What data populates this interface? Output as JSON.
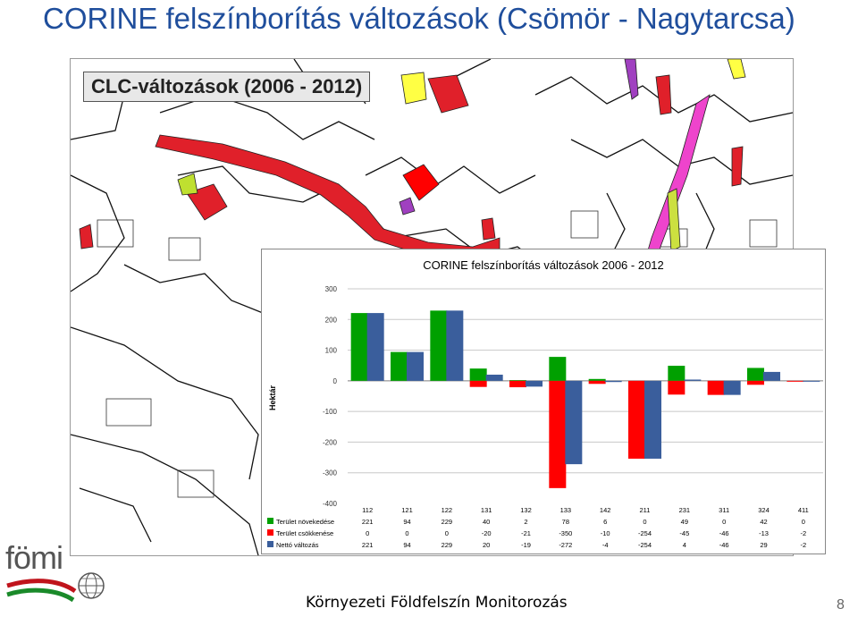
{
  "slide": {
    "title": "CORINE felszínborítás változások (Csömör - Nagytarcsa)",
    "map_label": "CLC-változások (2006 - 2012)",
    "logo_text": "fömi",
    "footer": "Környezeti Földfelszín Monitorozás",
    "page_number": "8"
  },
  "chart_data": {
    "type": "bar",
    "title": "CORINE felszínborítás változások 2006 - 2012",
    "ylabel": "Hektár",
    "xlabel": "",
    "ylim": [
      -400,
      300
    ],
    "yticks": [
      300,
      200,
      100,
      0,
      -100,
      -200,
      -300,
      -400
    ],
    "grid": true,
    "legend": "table-below",
    "categories": [
      "112",
      "121",
      "122",
      "131",
      "132",
      "133",
      "142",
      "211",
      "231",
      "311",
      "324",
      "411"
    ],
    "series": [
      {
        "name": "Terület növekedése",
        "color": "#00a000",
        "values": [
          221,
          94,
          229,
          40,
          2,
          78,
          6,
          0,
          49,
          0,
          42,
          0
        ]
      },
      {
        "name": "Terület csökkenése",
        "color": "#ff0000",
        "values": [
          0,
          0,
          0,
          -20,
          -21,
          -350,
          -10,
          -254,
          -45,
          -46,
          -13,
          -2
        ]
      },
      {
        "name": "Nettó változás",
        "color": "#3a5e9c",
        "values": [
          221,
          94,
          229,
          20,
          -19,
          -272,
          -4,
          -254,
          4,
          -46,
          29,
          -2
        ]
      }
    ]
  }
}
